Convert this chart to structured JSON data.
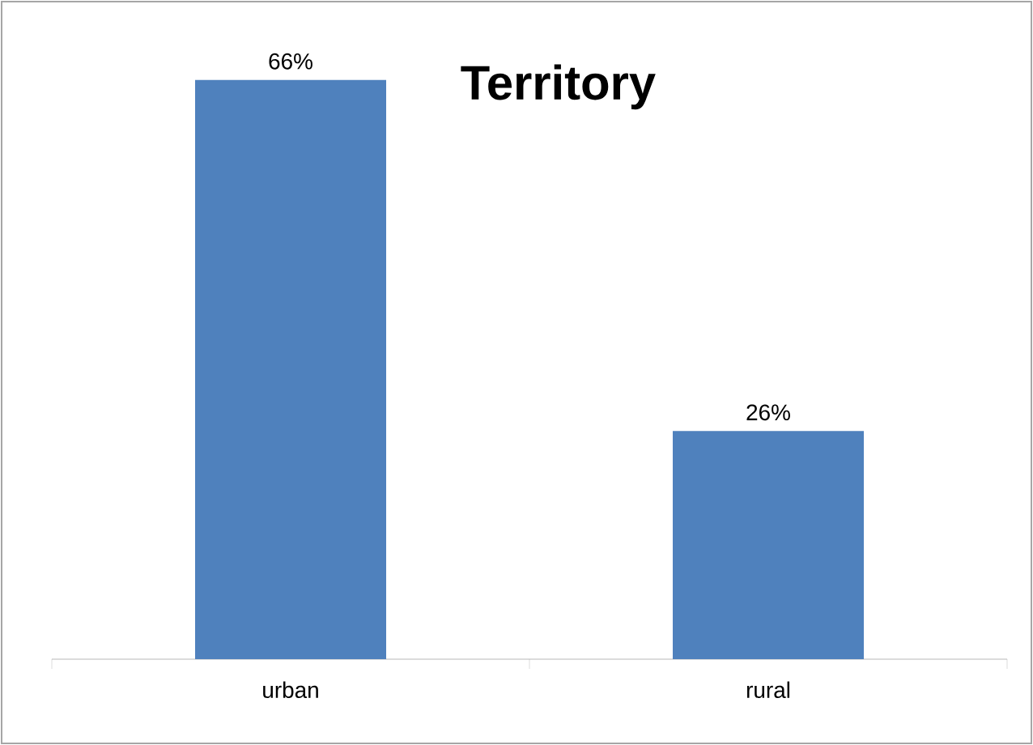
{
  "chart_data": {
    "type": "bar",
    "title": "Territory",
    "categories": [
      "urban",
      "rural"
    ],
    "values": [
      66,
      26
    ],
    "color": "#4f81bd",
    "value_labels": [
      "66%",
      "26%"
    ]
  }
}
